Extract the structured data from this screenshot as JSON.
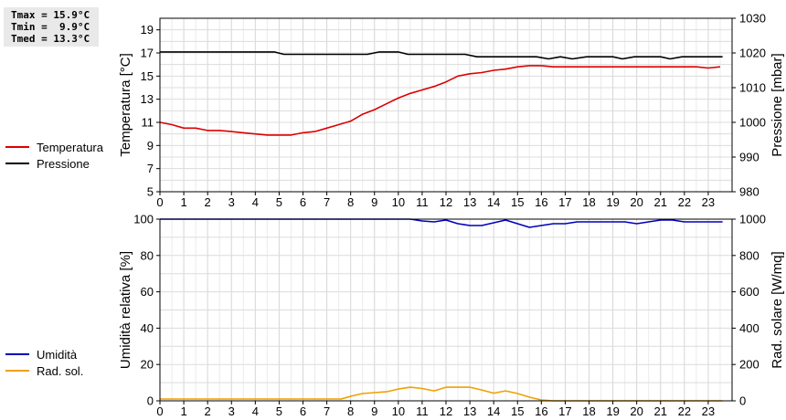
{
  "stats": {
    "tmax": "Tmax = 15.9°C",
    "tmin": "Tmin =  9.9°C",
    "tmed": "Tmed = 13.3°C"
  },
  "chart_data": [
    {
      "type": "line",
      "xlim": [
        0,
        24
      ],
      "x_ticks": [
        0,
        1,
        2,
        3,
        4,
        5,
        6,
        7,
        8,
        9,
        10,
        11,
        12,
        13,
        14,
        15,
        16,
        17,
        18,
        19,
        20,
        21,
        22,
        23
      ],
      "ylabel": "Temperatura [°C]",
      "ylim": [
        5,
        20
      ],
      "y_ticks": [
        5,
        7,
        9,
        11,
        13,
        15,
        17,
        19
      ],
      "y2label": "Pressione [mbar]",
      "y2lim": [
        980,
        1030
      ],
      "y2_ticks": [
        980,
        990,
        1000,
        1010,
        1020,
        1030
      ],
      "grid": true,
      "legend_position": "left",
      "series": [
        {
          "name": "Temperatura",
          "axis": "left",
          "color": "#dd0000",
          "points": [
            [
              0,
              11.0
            ],
            [
              0.5,
              10.8
            ],
            [
              1,
              10.5
            ],
            [
              1.5,
              10.5
            ],
            [
              2,
              10.3
            ],
            [
              2.5,
              10.3
            ],
            [
              3,
              10.2
            ],
            [
              3.5,
              10.1
            ],
            [
              4,
              10.0
            ],
            [
              4.5,
              9.9
            ],
            [
              5,
              9.9
            ],
            [
              5.5,
              9.9
            ],
            [
              6,
              10.1
            ],
            [
              6.5,
              10.2
            ],
            [
              7,
              10.5
            ],
            [
              7.5,
              10.8
            ],
            [
              8,
              11.1
            ],
            [
              8.5,
              11.7
            ],
            [
              9,
              12.1
            ],
            [
              9.5,
              12.6
            ],
            [
              10,
              13.1
            ],
            [
              10.5,
              13.5
            ],
            [
              11,
              13.8
            ],
            [
              11.5,
              14.1
            ],
            [
              12,
              14.5
            ],
            [
              12.5,
              15.0
            ],
            [
              13,
              15.2
            ],
            [
              13.5,
              15.3
            ],
            [
              14,
              15.5
            ],
            [
              14.5,
              15.6
            ],
            [
              15,
              15.8
            ],
            [
              15.5,
              15.9
            ],
            [
              16,
              15.9
            ],
            [
              16.5,
              15.8
            ],
            [
              17,
              15.8
            ],
            [
              17.5,
              15.8
            ],
            [
              18,
              15.8
            ],
            [
              18.5,
              15.8
            ],
            [
              19,
              15.8
            ],
            [
              19.5,
              15.8
            ],
            [
              20,
              15.8
            ],
            [
              20.5,
              15.8
            ],
            [
              21,
              15.8
            ],
            [
              21.5,
              15.8
            ],
            [
              22,
              15.8
            ],
            [
              22.5,
              15.8
            ],
            [
              23,
              15.7
            ],
            [
              23.5,
              15.8
            ]
          ]
        },
        {
          "name": "Pressione",
          "axis": "right",
          "color": "#000000",
          "points": [
            [
              0,
              1020.3
            ],
            [
              1,
              1020.3
            ],
            [
              2,
              1020.3
            ],
            [
              3,
              1020.3
            ],
            [
              4,
              1020.3
            ],
            [
              4.8,
              1020.3
            ],
            [
              5.2,
              1019.6
            ],
            [
              6,
              1019.6
            ],
            [
              7,
              1019.6
            ],
            [
              8,
              1019.6
            ],
            [
              8.7,
              1019.6
            ],
            [
              9.2,
              1020.3
            ],
            [
              10,
              1020.3
            ],
            [
              10.4,
              1019.6
            ],
            [
              11,
              1019.6
            ],
            [
              12,
              1019.6
            ],
            [
              12.8,
              1019.6
            ],
            [
              13.3,
              1018.9
            ],
            [
              14,
              1018.9
            ],
            [
              15,
              1018.9
            ],
            [
              15.8,
              1018.9
            ],
            [
              16.3,
              1018.3
            ],
            [
              16.8,
              1018.9
            ],
            [
              17.3,
              1018.3
            ],
            [
              17.9,
              1018.9
            ],
            [
              18.5,
              1018.9
            ],
            [
              19,
              1018.9
            ],
            [
              19.4,
              1018.3
            ],
            [
              19.9,
              1018.9
            ],
            [
              20.5,
              1018.9
            ],
            [
              21,
              1018.9
            ],
            [
              21.4,
              1018.3
            ],
            [
              21.9,
              1018.9
            ],
            [
              22.5,
              1018.9
            ],
            [
              23.6,
              1018.9
            ]
          ]
        }
      ]
    },
    {
      "type": "line",
      "xlim": [
        0,
        24
      ],
      "x_ticks": [
        0,
        1,
        2,
        3,
        4,
        5,
        6,
        7,
        8,
        9,
        10,
        11,
        12,
        13,
        14,
        15,
        16,
        17,
        18,
        19,
        20,
        21,
        22,
        23
      ],
      "ylabel": "Umidità relativa [%]",
      "ylim": [
        0,
        100
      ],
      "y_ticks": [
        0,
        20,
        40,
        60,
        80,
        100
      ],
      "y2label": "Rad. solare [W/mq]",
      "y2lim": [
        0,
        1000
      ],
      "y2_ticks": [
        0,
        200,
        400,
        600,
        800,
        1000
      ],
      "grid": true,
      "legend_position": "left",
      "series": [
        {
          "name": "Umidità",
          "axis": "left",
          "color": "#0000bb",
          "points": [
            [
              0,
              100
            ],
            [
              10.5,
              100
            ],
            [
              11,
              99
            ],
            [
              11.5,
              98.5
            ],
            [
              12,
              99.5
            ],
            [
              12.5,
              97.5
            ],
            [
              13,
              96.5
            ],
            [
              13.5,
              96.5
            ],
            [
              14,
              98
            ],
            [
              14.5,
              99.5
            ],
            [
              15,
              97.5
            ],
            [
              15.5,
              95.5
            ],
            [
              16,
              96.5
            ],
            [
              16.5,
              97.5
            ],
            [
              17,
              97.5
            ],
            [
              17.5,
              98.5
            ],
            [
              18,
              98.5
            ],
            [
              18.5,
              98.5
            ],
            [
              19,
              98.5
            ],
            [
              19.5,
              98.5
            ],
            [
              20,
              97.5
            ],
            [
              20.5,
              98.5
            ],
            [
              21,
              99.5
            ],
            [
              21.5,
              99.5
            ],
            [
              22,
              98.5
            ],
            [
              23,
              98.5
            ],
            [
              23.6,
              98.5
            ]
          ]
        },
        {
          "name": "Rad. sol.",
          "axis": "right",
          "color": "#f0a000",
          "points": [
            [
              0,
              10
            ],
            [
              7.6,
              10
            ],
            [
              8,
              25
            ],
            [
              8.5,
              40
            ],
            [
              9,
              45
            ],
            [
              9.5,
              50
            ],
            [
              10,
              65
            ],
            [
              10.5,
              75
            ],
            [
              11,
              68
            ],
            [
              11.5,
              55
            ],
            [
              12,
              75
            ],
            [
              12.5,
              75
            ],
            [
              13,
              75
            ],
            [
              13.5,
              60
            ],
            [
              14,
              42
            ],
            [
              14.5,
              55
            ],
            [
              15,
              40
            ],
            [
              15.5,
              20
            ],
            [
              16,
              5
            ],
            [
              16.5,
              0
            ],
            [
              17,
              0
            ],
            [
              20,
              0
            ],
            [
              23.6,
              0
            ]
          ]
        }
      ]
    }
  ]
}
